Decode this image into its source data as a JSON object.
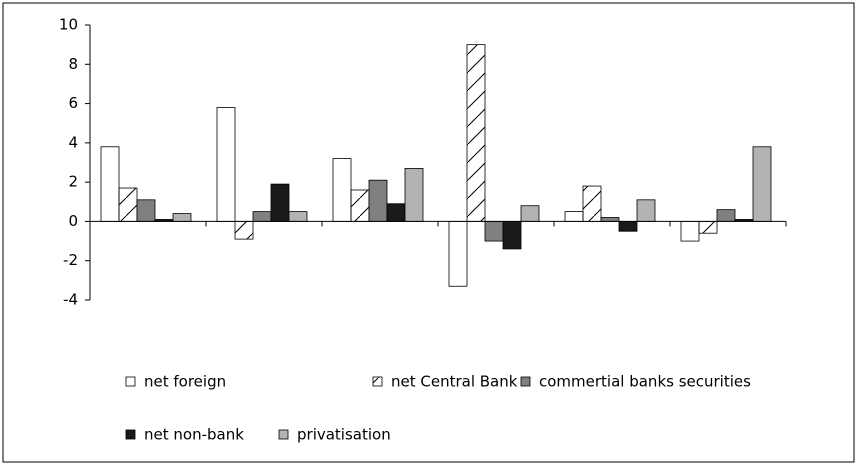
{
  "chart_data": {
    "type": "bar",
    "categories": [
      null,
      null,
      null,
      null,
      null,
      null
    ],
    "series": [
      {
        "name": "net foreign",
        "color": "#ffffff",
        "values": [
          3.8,
          5.8,
          3.2,
          -3.3,
          0.5,
          -1.0
        ]
      },
      {
        "name": "net Central Bank",
        "color": "#ffffff",
        "hatch": true,
        "values": [
          1.7,
          -0.9,
          1.6,
          9.0,
          1.8,
          -0.6
        ]
      },
      {
        "name": "commertial banks securities",
        "color": "#808080",
        "values": [
          1.1,
          0.5,
          2.1,
          -1.0,
          0.2,
          0.6
        ]
      },
      {
        "name": "net non-bank",
        "color": "#1a1a1a",
        "values": [
          0.1,
          1.9,
          0.9,
          -1.4,
          -0.5,
          0.1
        ]
      },
      {
        "name": "privatisation",
        "color": "#b3b3b3",
        "values": [
          0.4,
          0.5,
          2.7,
          0.8,
          1.1,
          3.8
        ]
      }
    ],
    "ylim": [
      -4,
      10
    ],
    "yticks": [
      -4,
      -2,
      0,
      2,
      4,
      6,
      8,
      10
    ],
    "grid": false
  }
}
